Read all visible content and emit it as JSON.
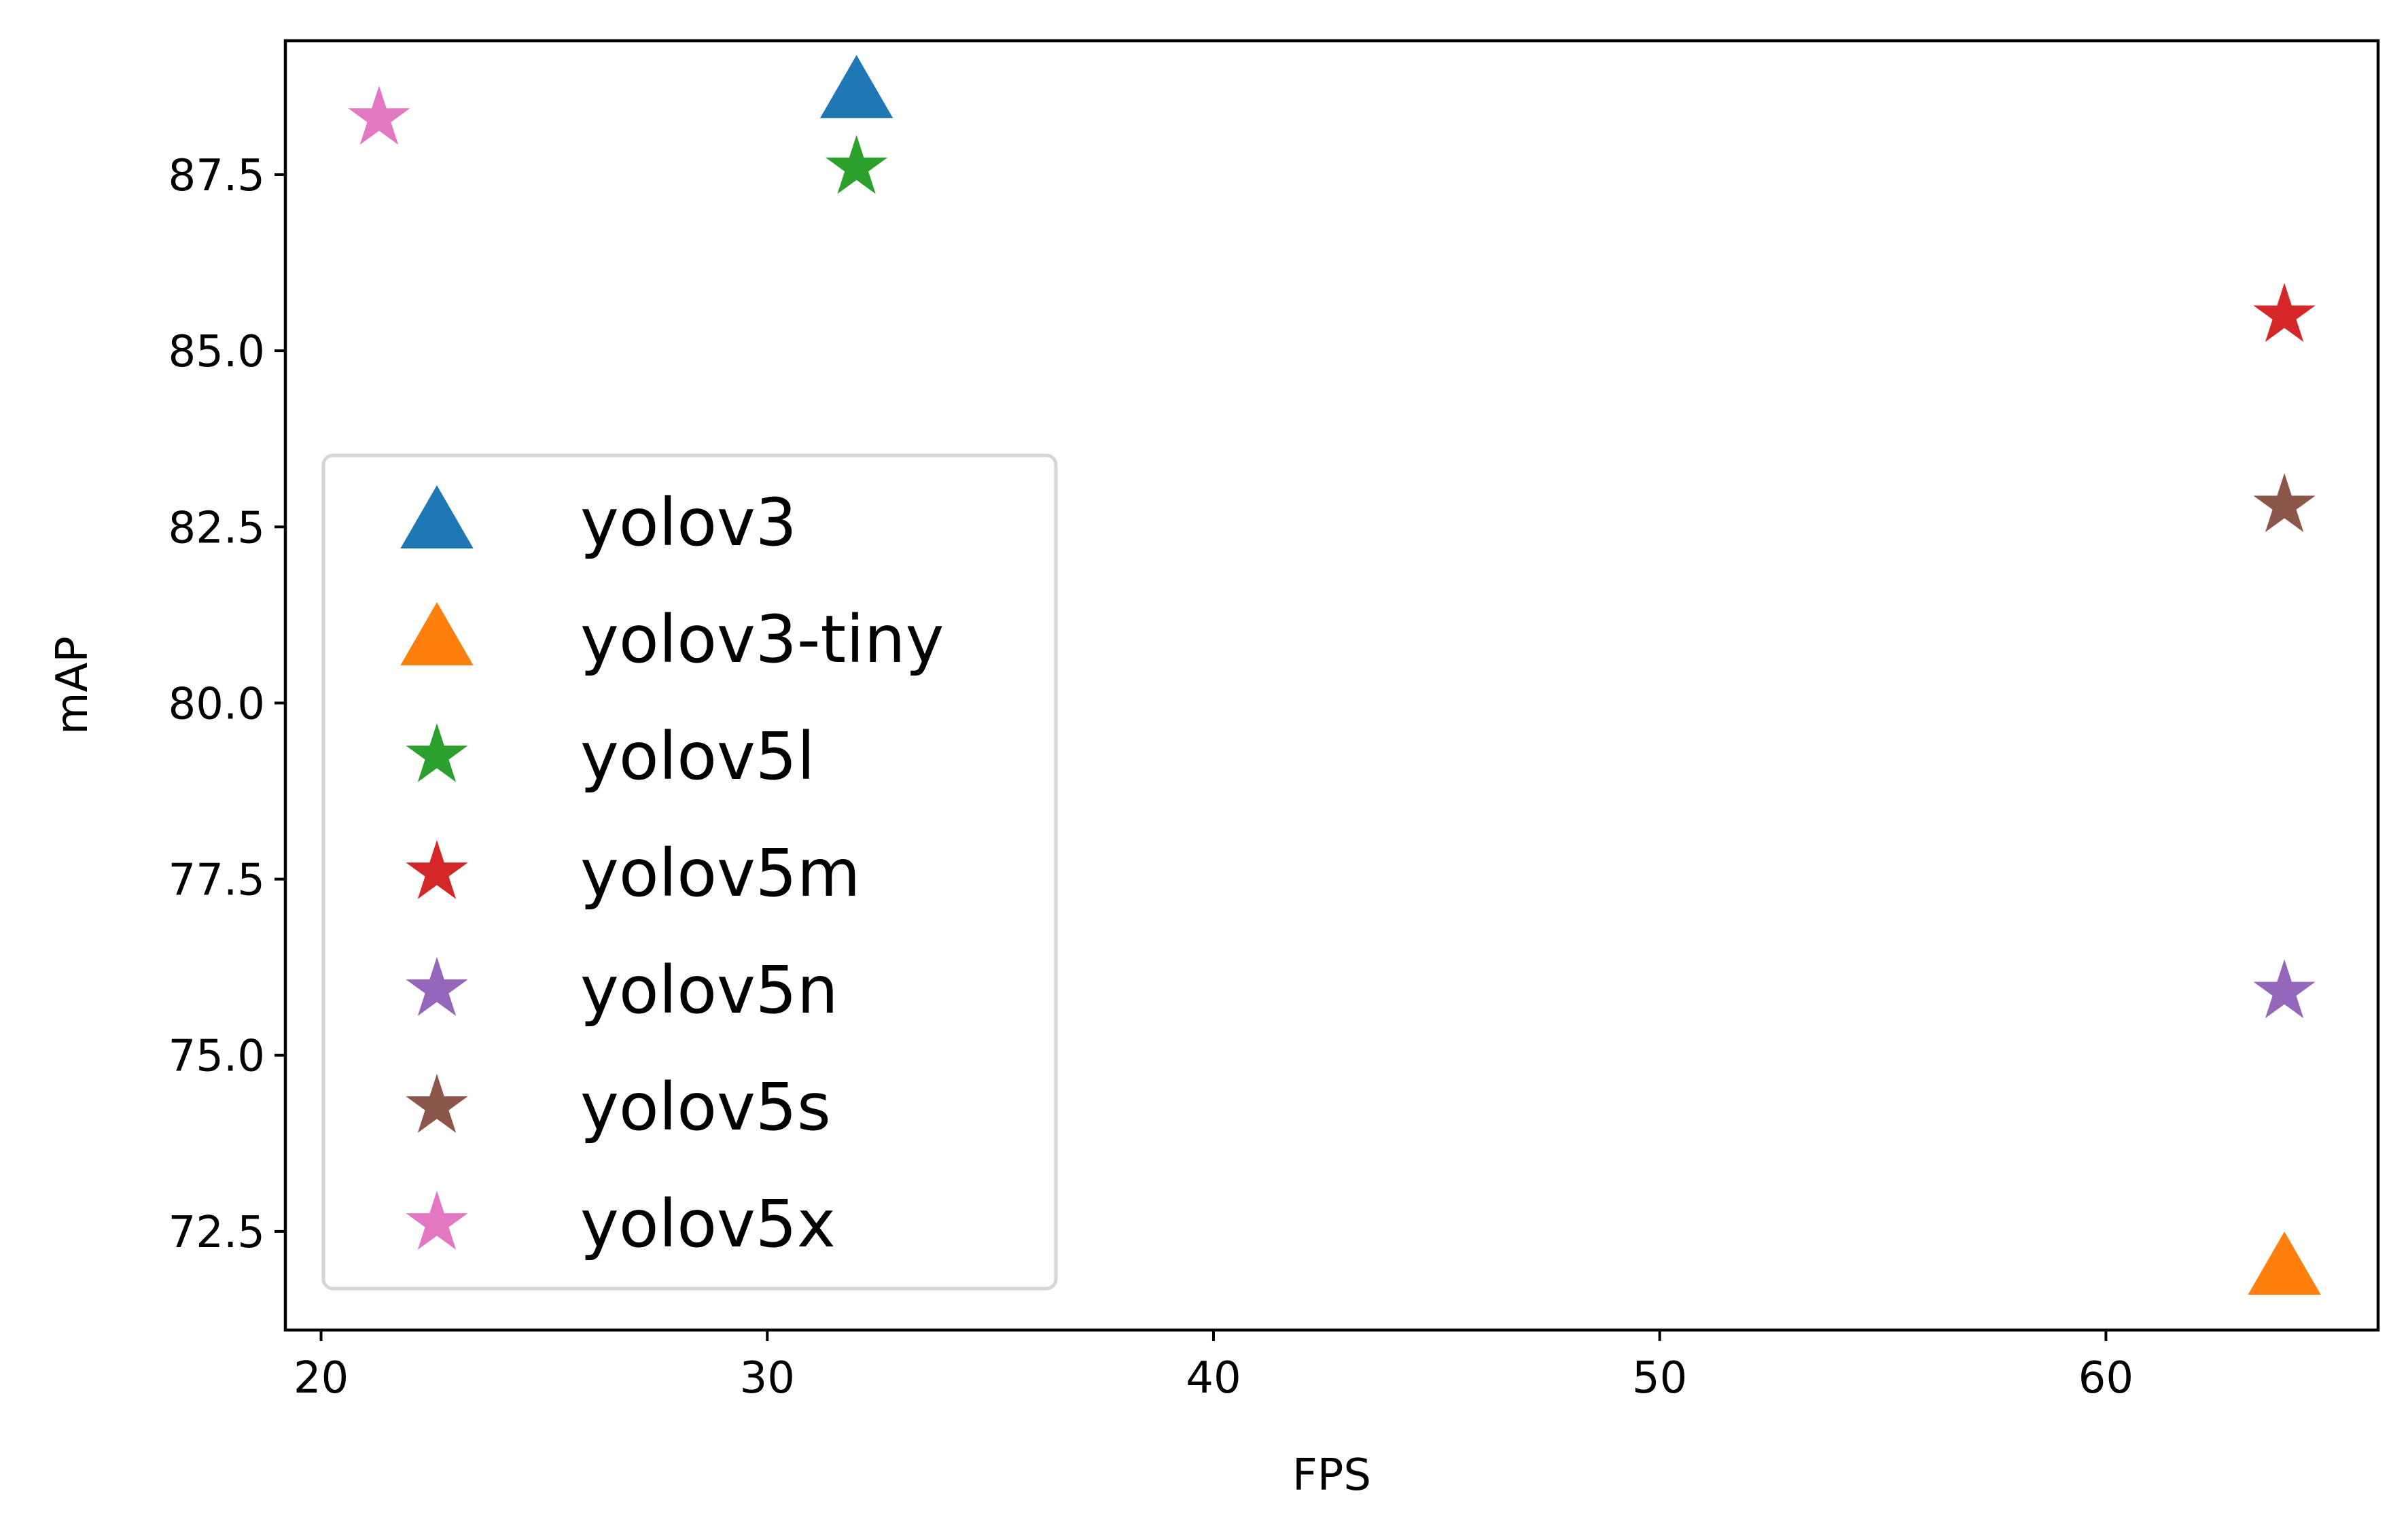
{
  "chart_data": {
    "type": "scatter",
    "title": "",
    "xlabel": "FPS",
    "ylabel": "mAP",
    "xlim": [
      19.2,
      66.1
    ],
    "ylim": [
      71.1,
      89.4
    ],
    "xticks": [
      20,
      30,
      40,
      50,
      60
    ],
    "xtick_labels": [
      "20",
      "30",
      "40",
      "50",
      "60"
    ],
    "yticks": [
      72.5,
      75.0,
      77.5,
      80.0,
      82.5,
      85.0,
      87.5
    ],
    "ytick_labels": [
      "72.5",
      "75.0",
      "77.5",
      "80.0",
      "82.5",
      "85.0",
      "87.5"
    ],
    "grid": false,
    "legend_position": "center-left",
    "series": [
      {
        "name": "yolov3",
        "marker": "triangle",
        "color": "#1f77b4",
        "points": [
          {
            "x": 32.0,
            "y": 88.6
          }
        ]
      },
      {
        "name": "yolov3-tiny",
        "marker": "triangle",
        "color": "#ff7f0e",
        "points": [
          {
            "x": 64.0,
            "y": 71.9
          }
        ]
      },
      {
        "name": "yolov5l",
        "marker": "star",
        "color": "#2ca02c",
        "points": [
          {
            "x": 32.0,
            "y": 87.6
          }
        ]
      },
      {
        "name": "yolov5m",
        "marker": "star",
        "color": "#d62728",
        "points": [
          {
            "x": 64.0,
            "y": 85.5
          }
        ]
      },
      {
        "name": "yolov5n",
        "marker": "star",
        "color": "#9467bd",
        "points": [
          {
            "x": 64.0,
            "y": 75.9
          }
        ]
      },
      {
        "name": "yolov5s",
        "marker": "star",
        "color": "#8c564b",
        "points": [
          {
            "x": 64.0,
            "y": 82.8
          }
        ]
      },
      {
        "name": "yolov5x",
        "marker": "star",
        "color": "#e377c2",
        "points": [
          {
            "x": 21.3,
            "y": 88.3
          }
        ]
      }
    ]
  }
}
